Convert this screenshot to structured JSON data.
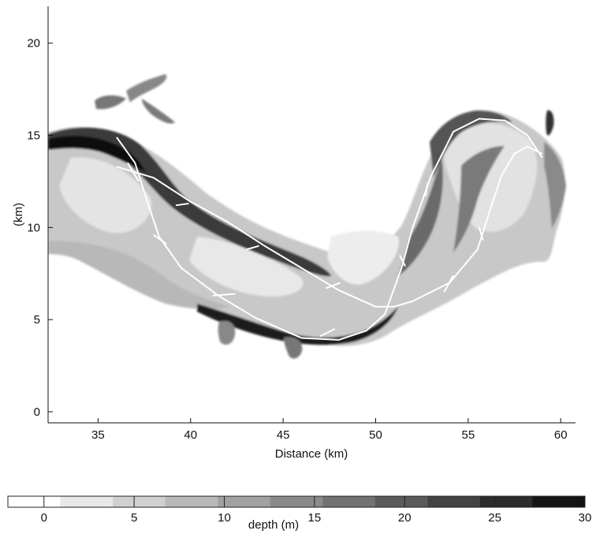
{
  "chart_data": {
    "type": "heatmap",
    "title": "",
    "xlabel": "Distance (km)",
    "ylabel": "(km)",
    "xlim": [
      32.3,
      60.8
    ],
    "ylim": [
      -0.6,
      22
    ],
    "x_ticks": [
      "35",
      "40",
      "45",
      "50",
      "55",
      "60"
    ],
    "y_ticks": [
      "0",
      "5",
      "10",
      "15",
      "20"
    ],
    "grid": false,
    "colorbar": {
      "label": "depth (m)",
      "range": [
        -2,
        30
      ],
      "ticks": [
        "0",
        "5",
        "10",
        "15",
        "20",
        "25",
        "30"
      ],
      "colormap": "white-to-black (grayscale, deeper = darker)"
    },
    "centerlines": [
      {
        "points": [
          [
            36.0,
            13.3
          ],
          [
            38.0,
            12.7
          ],
          [
            40.0,
            11.4
          ],
          [
            42.0,
            10.3
          ],
          [
            44.0,
            9.0
          ],
          [
            46.0,
            7.8
          ],
          [
            48.0,
            6.6
          ],
          [
            50.0,
            5.7
          ],
          [
            51.0,
            5.7
          ],
          [
            52.0,
            6.0
          ],
          [
            54.0,
            7.0
          ],
          [
            55.5,
            8.8
          ],
          [
            56.2,
            11.0
          ],
          [
            56.8,
            12.8
          ],
          [
            57.5,
            14.0
          ],
          [
            58.2,
            14.4
          ],
          [
            59.0,
            14.0
          ]
        ]
      },
      {
        "points": [
          [
            36.0,
            14.9
          ],
          [
            37.0,
            13.5
          ],
          [
            37.6,
            11.6
          ],
          [
            38.3,
            9.5
          ],
          [
            39.5,
            7.8
          ],
          [
            41.5,
            6.3
          ],
          [
            43.5,
            5.1
          ],
          [
            46.0,
            4.0
          ],
          [
            48.0,
            3.9
          ],
          [
            49.5,
            4.4
          ],
          [
            50.5,
            5.3
          ],
          [
            51.4,
            7.8
          ],
          [
            52.0,
            10.0
          ],
          [
            53.0,
            12.8
          ],
          [
            54.2,
            15.2
          ],
          [
            55.6,
            15.9
          ],
          [
            57.0,
            15.8
          ],
          [
            58.2,
            15.0
          ],
          [
            59.0,
            13.8
          ]
        ]
      }
    ],
    "cross_sections": [
      [
        [
          36.6,
          13.5
        ],
        [
          37.2,
          12.5
        ]
      ],
      [
        [
          39.2,
          11.2
        ],
        [
          39.9,
          11.3
        ]
      ],
      [
        [
          38.0,
          9.6
        ],
        [
          38.7,
          9.1
        ]
      ],
      [
        [
          41.2,
          6.3
        ],
        [
          42.4,
          6.4
        ]
      ],
      [
        [
          43.0,
          8.8
        ],
        [
          43.7,
          9.0
        ]
      ],
      [
        [
          47.0,
          4.1
        ],
        [
          47.8,
          4.5
        ]
      ],
      [
        [
          47.3,
          6.7
        ],
        [
          48.1,
          7.0
        ]
      ],
      [
        [
          51.3,
          8.5
        ],
        [
          51.6,
          7.9
        ]
      ],
      [
        [
          52.7,
          11.7
        ],
        [
          52.8,
          12.4
        ]
      ],
      [
        [
          53.7,
          6.5
        ],
        [
          54.2,
          7.4
        ]
      ],
      [
        [
          55.6,
          10.0
        ],
        [
          55.8,
          9.3
        ]
      ]
    ]
  }
}
